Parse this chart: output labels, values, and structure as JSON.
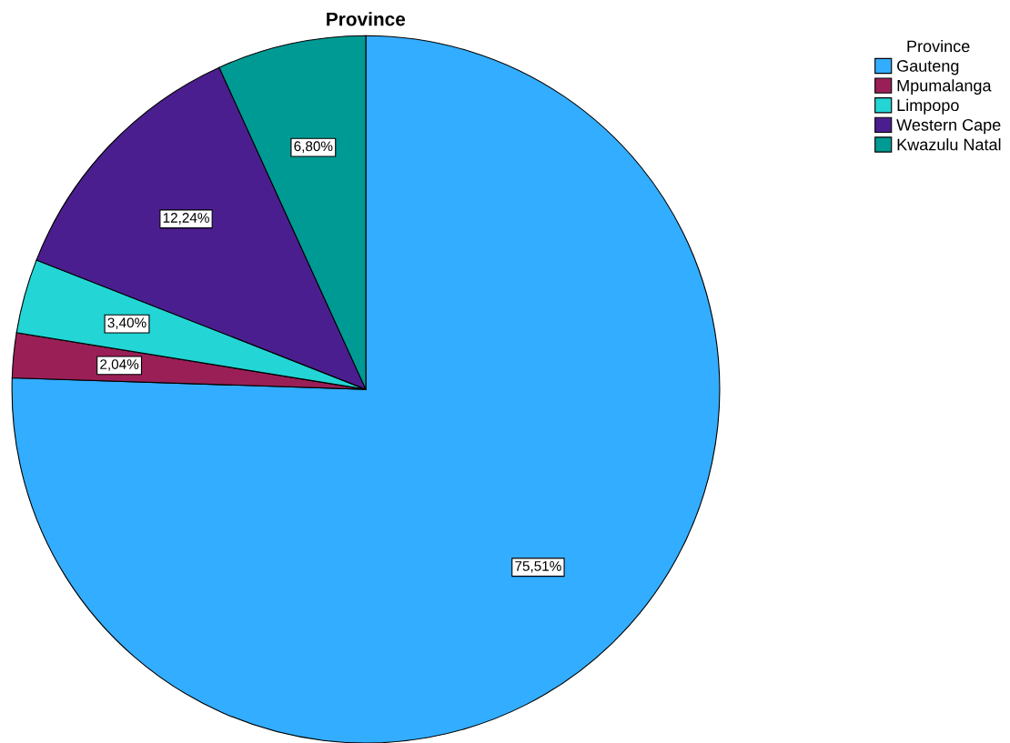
{
  "chart_data": {
    "type": "pie",
    "title": "Province",
    "legend_title": "Province",
    "categories": [
      "Gauteng",
      "Mpumalanga",
      "Limpopo",
      "Western Cape",
      "Kwazulu Natal"
    ],
    "values": [
      75.51,
      2.04,
      3.4,
      12.24,
      6.8
    ],
    "colors": [
      "#33adff",
      "#9b1f57",
      "#23d5d5",
      "#4b1e8f",
      "#009a94"
    ],
    "value_labels": [
      "75,51%",
      "2,04%",
      "3,40%",
      "12,24%",
      "6,80%"
    ],
    "legend": "top right"
  }
}
